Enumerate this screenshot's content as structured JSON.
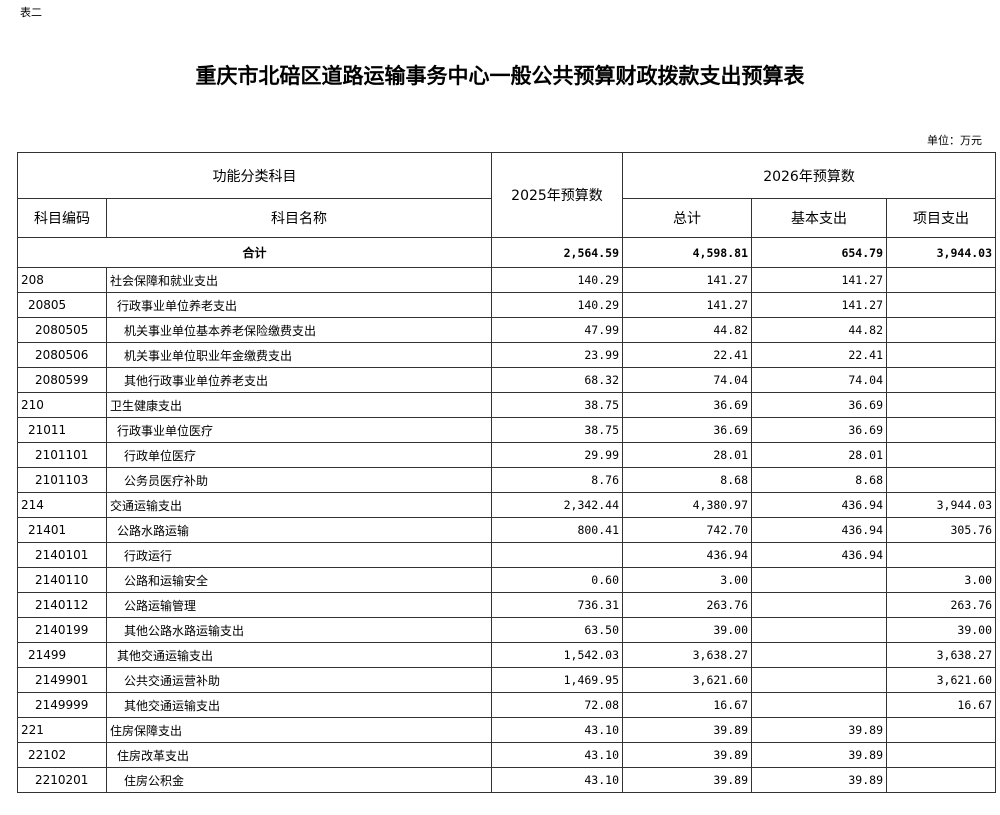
{
  "doc_label": "表二",
  "title": "重庆市北碚区道路运输事务中心一般公共预算财政拨款支出预算表",
  "unit": "单位：万元",
  "headers": {
    "func_category": "功能分类科目",
    "y2025": "2025年预算数",
    "y2026": "2026年预算数",
    "code": "科目编码",
    "name": "科目名称",
    "total": "总计",
    "basic": "基本支出",
    "project": "项目支出"
  },
  "total_row": {
    "label": "合计",
    "y2025": "2,564.59",
    "total": "4,598.81",
    "basic": "654.79",
    "project": "3,944.03"
  },
  "rows": [
    {
      "level": 0,
      "code": "208",
      "name": "社会保障和就业支出",
      "y2025": "140.29",
      "total": "141.27",
      "basic": "141.27",
      "project": ""
    },
    {
      "level": 1,
      "code": "20805",
      "name": "行政事业单位养老支出",
      "y2025": "140.29",
      "total": "141.27",
      "basic": "141.27",
      "project": ""
    },
    {
      "level": 2,
      "code": "2080505",
      "name": "机关事业单位基本养老保险缴费支出",
      "y2025": "47.99",
      "total": "44.82",
      "basic": "44.82",
      "project": ""
    },
    {
      "level": 2,
      "code": "2080506",
      "name": "机关事业单位职业年金缴费支出",
      "y2025": "23.99",
      "total": "22.41",
      "basic": "22.41",
      "project": ""
    },
    {
      "level": 2,
      "code": "2080599",
      "name": "其他行政事业单位养老支出",
      "y2025": "68.32",
      "total": "74.04",
      "basic": "74.04",
      "project": ""
    },
    {
      "level": 0,
      "code": "210",
      "name": "卫生健康支出",
      "y2025": "38.75",
      "total": "36.69",
      "basic": "36.69",
      "project": ""
    },
    {
      "level": 1,
      "code": "21011",
      "name": "行政事业单位医疗",
      "y2025": "38.75",
      "total": "36.69",
      "basic": "36.69",
      "project": ""
    },
    {
      "level": 2,
      "code": "2101101",
      "name": "行政单位医疗",
      "y2025": "29.99",
      "total": "28.01",
      "basic": "28.01",
      "project": ""
    },
    {
      "level": 2,
      "code": "2101103",
      "name": "公务员医疗补助",
      "y2025": "8.76",
      "total": "8.68",
      "basic": "8.68",
      "project": ""
    },
    {
      "level": 0,
      "code": "214",
      "name": "交通运输支出",
      "y2025": "2,342.44",
      "total": "4,380.97",
      "basic": "436.94",
      "project": "3,944.03"
    },
    {
      "level": 1,
      "code": "21401",
      "name": "公路水路运输",
      "y2025": "800.41",
      "total": "742.70",
      "basic": "436.94",
      "project": "305.76"
    },
    {
      "level": 2,
      "code": "2140101",
      "name": "行政运行",
      "y2025": "",
      "total": "436.94",
      "basic": "436.94",
      "project": ""
    },
    {
      "level": 2,
      "code": "2140110",
      "name": "公路和运输安全",
      "y2025": "0.60",
      "total": "3.00",
      "basic": "",
      "project": "3.00"
    },
    {
      "level": 2,
      "code": "2140112",
      "name": "公路运输管理",
      "y2025": "736.31",
      "total": "263.76",
      "basic": "",
      "project": "263.76"
    },
    {
      "level": 2,
      "code": "2140199",
      "name": "其他公路水路运输支出",
      "y2025": "63.50",
      "total": "39.00",
      "basic": "",
      "project": "39.00"
    },
    {
      "level": 1,
      "code": "21499",
      "name": "其他交通运输支出",
      "y2025": "1,542.03",
      "total": "3,638.27",
      "basic": "",
      "project": "3,638.27"
    },
    {
      "level": 2,
      "code": "2149901",
      "name": "公共交通运营补助",
      "y2025": "1,469.95",
      "total": "3,621.60",
      "basic": "",
      "project": "3,621.60"
    },
    {
      "level": 2,
      "code": "2149999",
      "name": "其他交通运输支出",
      "y2025": "72.08",
      "total": "16.67",
      "basic": "",
      "project": "16.67"
    },
    {
      "level": 0,
      "code": "221",
      "name": "住房保障支出",
      "y2025": "43.10",
      "total": "39.89",
      "basic": "39.89",
      "project": ""
    },
    {
      "level": 1,
      "code": "22102",
      "name": "住房改革支出",
      "y2025": "43.10",
      "total": "39.89",
      "basic": "39.89",
      "project": ""
    },
    {
      "level": 2,
      "code": "2210201",
      "name": "住房公积金",
      "y2025": "43.10",
      "total": "39.89",
      "basic": "39.89",
      "project": ""
    }
  ]
}
